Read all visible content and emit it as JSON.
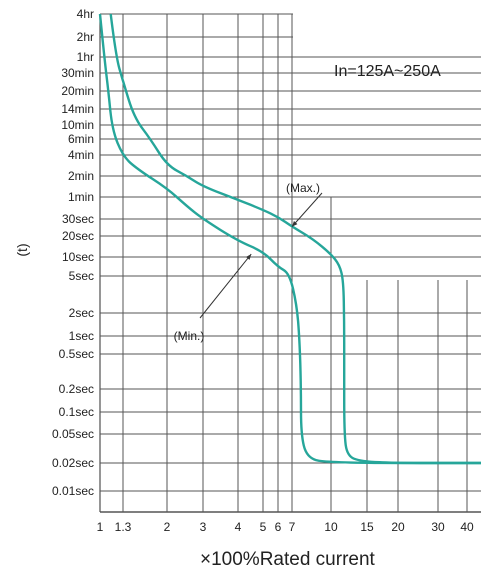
{
  "chart_data": {
    "type": "line",
    "title": "",
    "annotation_text": "In=125A~250A",
    "xlabel": "×100%Rated current",
    "ylabel": "(t)",
    "x_scale": "log",
    "y_scale": "log",
    "xlim": [
      1,
      45
    ],
    "x_ticks": [
      {
        "value": 1,
        "label": "1"
      },
      {
        "value": 1.3,
        "label": "1.3"
      },
      {
        "value": 2,
        "label": "2"
      },
      {
        "value": 3,
        "label": "3"
      },
      {
        "value": 4,
        "label": "4"
      },
      {
        "value": 5,
        "label": "5"
      },
      {
        "value": 6,
        "label": "6"
      },
      {
        "value": 7,
        "label": "7"
      },
      {
        "value": 10,
        "label": "10"
      },
      {
        "value": 15,
        "label": "15"
      },
      {
        "value": 20,
        "label": "20"
      },
      {
        "value": 30,
        "label": "30"
      },
      {
        "value": 40,
        "label": "40"
      }
    ],
    "y_ticks": [
      {
        "seconds": 14400,
        "label": "4hr"
      },
      {
        "seconds": 7200,
        "label": "2hr"
      },
      {
        "seconds": 3600,
        "label": "1hr"
      },
      {
        "seconds": 1800,
        "label": "30min"
      },
      {
        "seconds": 1200,
        "label": "20min"
      },
      {
        "seconds": 840,
        "label": "14min"
      },
      {
        "seconds": 600,
        "label": "10min"
      },
      {
        "seconds": 360,
        "label": "6min"
      },
      {
        "seconds": 240,
        "label": "4min"
      },
      {
        "seconds": 120,
        "label": "2min"
      },
      {
        "seconds": 60,
        "label": "1min"
      },
      {
        "seconds": 30,
        "label": "30sec"
      },
      {
        "seconds": 20,
        "label": "20sec"
      },
      {
        "seconds": 10,
        "label": "10sec"
      },
      {
        "seconds": 5,
        "label": "5sec"
      },
      {
        "seconds": 2,
        "label": "2sec"
      },
      {
        "seconds": 1,
        "label": "1sec"
      },
      {
        "seconds": 0.5,
        "label": "0.5sec"
      },
      {
        "seconds": 0.2,
        "label": "0.2sec"
      },
      {
        "seconds": 0.1,
        "label": "0.1sec"
      },
      {
        "seconds": 0.05,
        "label": "0.05sec"
      },
      {
        "seconds": 0.02,
        "label": "0.02sec"
      },
      {
        "seconds": 0.01,
        "label": "0.01sec"
      }
    ],
    "series": [
      {
        "name": "(Max.)",
        "color": "#26a69a",
        "points": [
          [
            1.13,
            14400
          ],
          [
            1.2,
            3600
          ],
          [
            1.3,
            1500
          ],
          [
            1.45,
            700
          ],
          [
            1.7,
            360
          ],
          [
            2.0,
            170
          ],
          [
            2.5,
            120
          ],
          [
            3.0,
            85
          ],
          [
            4.0,
            55
          ],
          [
            5.0,
            40
          ],
          [
            6.0,
            32
          ],
          [
            7.0,
            25
          ],
          [
            8.5,
            18
          ],
          [
            10.0,
            11
          ],
          [
            11.0,
            7.5
          ],
          [
            11.5,
            4.5
          ],
          [
            11.6,
            1.5
          ],
          [
            11.6,
            0.4
          ],
          [
            11.6,
            0.05
          ],
          [
            12.0,
            0.025
          ],
          [
            14.0,
            0.021
          ],
          [
            20.0,
            0.02
          ],
          [
            45.0,
            0.02
          ]
        ]
      },
      {
        "name": "(Min.)",
        "color": "#26a69a",
        "points": [
          [
            1.0,
            14400
          ],
          [
            1.05,
            3600
          ],
          [
            1.1,
            1200
          ],
          [
            1.15,
            500
          ],
          [
            1.3,
            230
          ],
          [
            1.5,
            150
          ],
          [
            2.0,
            80
          ],
          [
            2.5,
            45
          ],
          [
            3.0,
            30
          ],
          [
            4.0,
            17
          ],
          [
            5.0,
            12
          ],
          [
            6.0,
            7
          ],
          [
            6.8,
            5.5
          ],
          [
            7.3,
            2.5
          ],
          [
            7.5,
            0.9
          ],
          [
            7.6,
            0.2
          ],
          [
            7.6,
            0.05
          ],
          [
            8.0,
            0.024
          ],
          [
            9.5,
            0.02
          ],
          [
            45.0,
            0.02
          ]
        ]
      }
    ],
    "grid": true,
    "legend": "none",
    "callouts": [
      {
        "text": "(Max.)",
        "arrow_to": [
          7.0,
          25
        ]
      },
      {
        "text": "(Min.)",
        "arrow_to": [
          4.5,
          11
        ]
      }
    ]
  }
}
